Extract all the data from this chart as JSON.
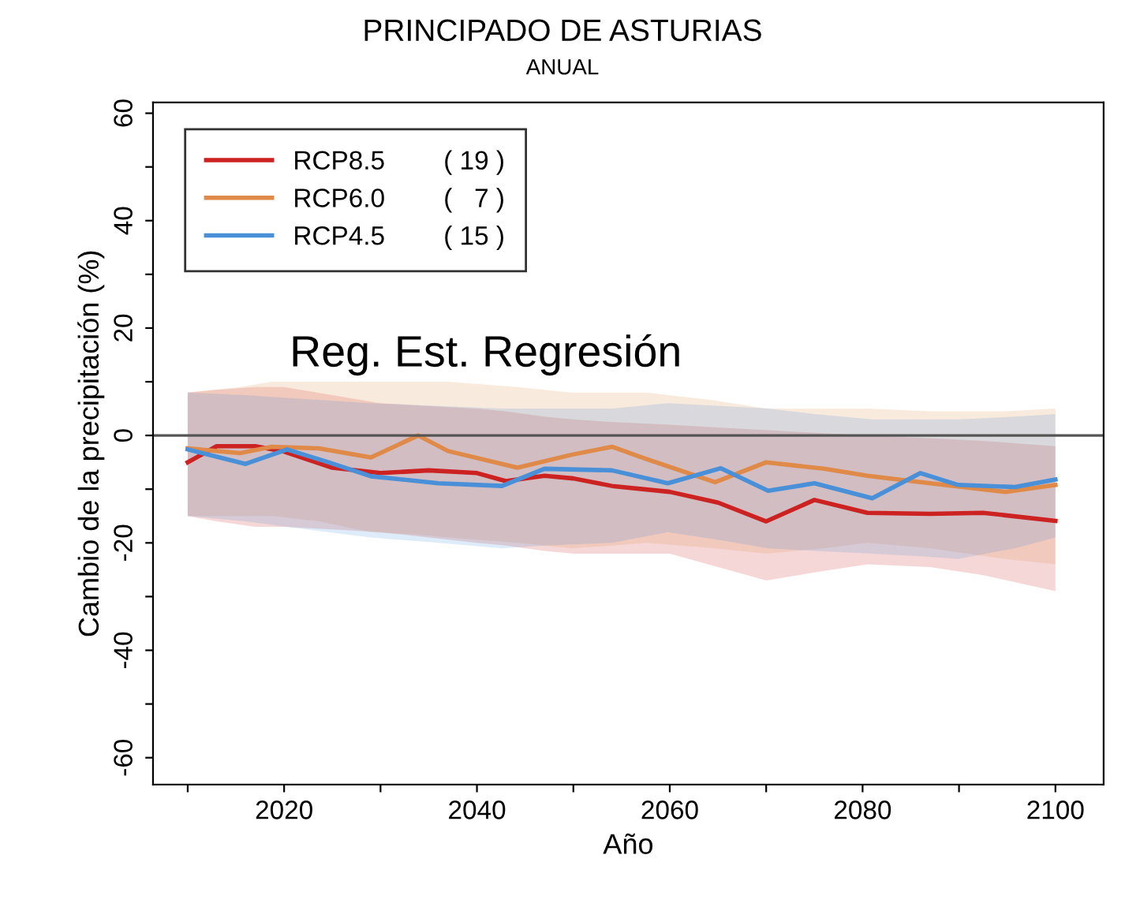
{
  "chart_data": {
    "type": "line",
    "title": "PRINCIPADO DE ASTURIAS",
    "subtitle": "ANUAL",
    "xlabel": "Año",
    "ylabel": "Cambio de la precipitación (%)",
    "annotations": [
      "Reg. Est. Regresión"
    ],
    "xlim": [
      2006.4,
      2105
    ],
    "ylim": [
      -65,
      62
    ],
    "xticks": [
      {
        "value": 2010,
        "label": null
      },
      2020,
      {
        "value": 2030,
        "label": null
      },
      2040,
      {
        "value": 2050,
        "label": null
      },
      2060,
      {
        "value": 2070,
        "label": null
      },
      2080,
      {
        "value": 2090,
        "label": null
      },
      2100
    ],
    "yticks": [
      -60,
      {
        "value": -50,
        "label": null
      },
      -40,
      {
        "value": -30,
        "label": null
      },
      -20,
      {
        "value": -10,
        "label": null
      },
      0,
      {
        "value": 10,
        "label": null
      },
      20,
      {
        "value": 30,
        "label": null
      },
      40,
      {
        "value": 50,
        "label": null
      },
      60
    ],
    "ref_lines": [
      {
        "axis": "y",
        "value": 0,
        "color": "#555555"
      }
    ],
    "grid": false,
    "legend": "top left",
    "marker": "none",
    "line_style": "solid",
    "series": [
      {
        "name": "RCP8.5        ( 19 )",
        "color": "#cc2222",
        "x": [
          2010,
          2013,
          2017,
          2020,
          2025,
          2030,
          2035,
          2040,
          2043,
          2047,
          2050,
          2054,
          2060,
          2065,
          2070,
          2075,
          2080.5,
          2087,
          2092.5,
          2100
        ],
        "values": [
          -5,
          -2,
          -2,
          -3,
          -6,
          -7,
          -6.5,
          -7,
          -8.5,
          -7.5,
          -8,
          -9.4,
          -10.5,
          -12.5,
          -16,
          -12,
          -14.4,
          -14.6,
          -14.4,
          -15.9
        ],
        "lower": [
          -15,
          -16,
          -17,
          -17,
          -17.5,
          -18,
          -19,
          -20,
          -20.5,
          -21.5,
          -22,
          -22,
          -22,
          -24.5,
          -27,
          -25.5,
          -24,
          -24.5,
          -26,
          -29
        ],
        "upper": [
          8,
          8.5,
          9,
          9,
          7.5,
          6,
          5.5,
          5,
          4.5,
          3.5,
          3,
          2.5,
          2,
          1.5,
          1,
          0.5,
          0,
          -0.5,
          -1,
          -2
        ]
      },
      {
        "name": "RCP6.0        (   7 )",
        "color": "#e08a4a",
        "x": [
          2010,
          2015.4,
          2018.7,
          2023.6,
          2029,
          2033.9,
          2037,
          2044.2,
          2049.8,
          2054,
          2057.6,
          2064.7,
          2070,
          2076,
          2080.5,
          2087,
          2094.8,
          2100
        ],
        "values": [
          -2.4,
          -3.3,
          -2.1,
          -2.4,
          -4.1,
          0,
          -2.9,
          -6,
          -3.6,
          -2.1,
          -4.4,
          -8.7,
          -5,
          -6.2,
          -7.5,
          -8.9,
          -10.5,
          -9.2
        ],
        "lower": [
          -15,
          -15,
          -15,
          -16,
          -18,
          -18.5,
          -19,
          -20,
          -21,
          -20.5,
          -20,
          -21,
          -22,
          -21,
          -20,
          -21,
          -23,
          -24
        ],
        "upper": [
          8,
          9,
          10,
          10,
          10,
          10,
          10,
          9,
          8,
          8,
          8,
          6.5,
          5,
          5,
          5,
          4.5,
          4.5,
          5
        ]
      },
      {
        "name": "RCP4.5        ( 15 )",
        "color": "#4a90d9",
        "x": [
          2010,
          2016,
          2020.3,
          2024.6,
          2029,
          2036,
          2042.6,
          2047,
          2054,
          2059.8,
          2065.3,
          2070.2,
          2075,
          2081,
          2086,
          2089.9,
          2095.8,
          2100
        ],
        "values": [
          -2.6,
          -5.3,
          -2.6,
          -5,
          -7.6,
          -8.9,
          -9.4,
          -6.2,
          -6.5,
          -8.9,
          -6.1,
          -10.3,
          -8.9,
          -11.7,
          -7,
          -9.2,
          -9.6,
          -8.2
        ],
        "lower": [
          -15,
          -16,
          -17,
          -18,
          -19,
          -20,
          -21,
          -20.5,
          -20,
          -18,
          -19.5,
          -21,
          -21.5,
          -22,
          -22.5,
          -23,
          -21,
          -19
        ],
        "upper": [
          8,
          7.5,
          7,
          6.5,
          6,
          5.5,
          5,
          5,
          5,
          6,
          5.5,
          5,
          4,
          3,
          3,
          3,
          3.5,
          4
        ]
      }
    ]
  }
}
